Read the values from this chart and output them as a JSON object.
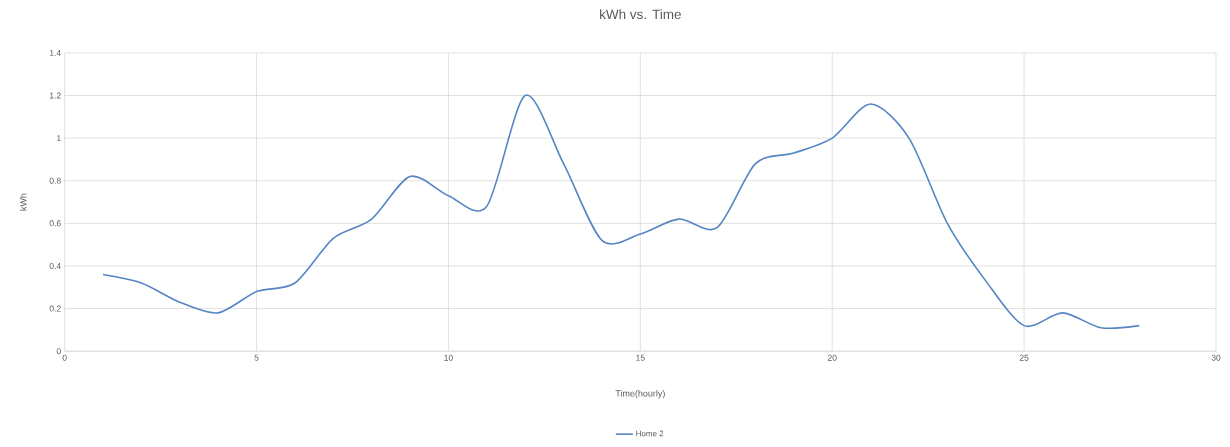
{
  "chart_data": {
    "type": "line",
    "title": "kWh vs. Time",
    "xlabel": "Time(hourly)",
    "ylabel": "kWh",
    "x": [
      1,
      2,
      3,
      4,
      5,
      6,
      7,
      8,
      9,
      10,
      11,
      12,
      13,
      14,
      15,
      16,
      17,
      18,
      19,
      20,
      21,
      22,
      23,
      24,
      25,
      26,
      27,
      28
    ],
    "series": [
      {
        "name": "Home 2",
        "color": "#5585c5",
        "values": [
          0.36,
          0.32,
          0.23,
          0.18,
          0.28,
          0.32,
          0.53,
          0.62,
          0.82,
          0.73,
          0.68,
          1.2,
          0.88,
          0.52,
          0.55,
          0.62,
          0.58,
          0.88,
          0.93,
          1.0,
          1.16,
          1.0,
          0.6,
          0.33,
          0.12,
          0.18,
          0.11,
          0.12
        ]
      }
    ],
    "xlim": [
      0,
      30
    ],
    "xticks": [
      0,
      5,
      10,
      15,
      20,
      25,
      30
    ],
    "ylim": [
      0,
      1.4
    ],
    "yticks": [
      0,
      0.2,
      0.4,
      0.6,
      0.8,
      1,
      1.2,
      1.4
    ],
    "grid": true,
    "legend": "bottom",
    "marker": "none",
    "line_style": "solid"
  }
}
